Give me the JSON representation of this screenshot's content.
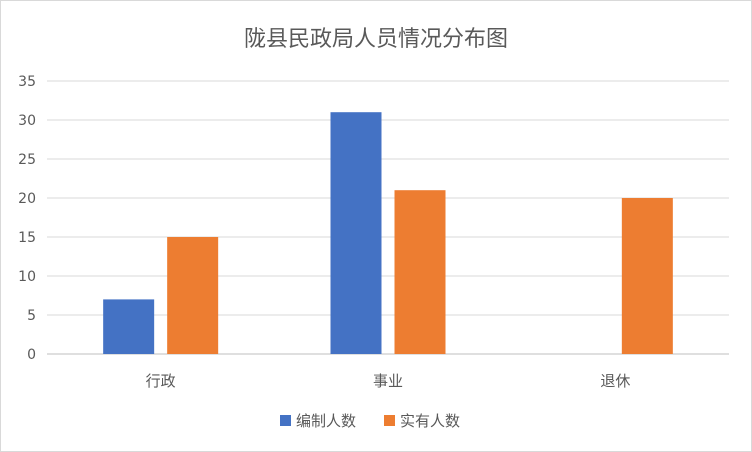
{
  "chart_data": {
    "type": "bar",
    "title": "陇县民政局人员情况分布图",
    "categories": [
      "行政",
      "事业",
      "退休"
    ],
    "series": [
      {
        "name": "编制人数",
        "values": [
          7,
          31,
          null
        ],
        "color": "#4472C4"
      },
      {
        "name": "实有人数",
        "values": [
          15,
          21,
          20
        ],
        "color": "#ED7D31"
      }
    ],
    "ylim": [
      0,
      35
    ],
    "yticks": [
      "0",
      "5",
      "10",
      "15",
      "20",
      "25",
      "30",
      "35"
    ],
    "grid": true,
    "legend_position": "bottom"
  }
}
